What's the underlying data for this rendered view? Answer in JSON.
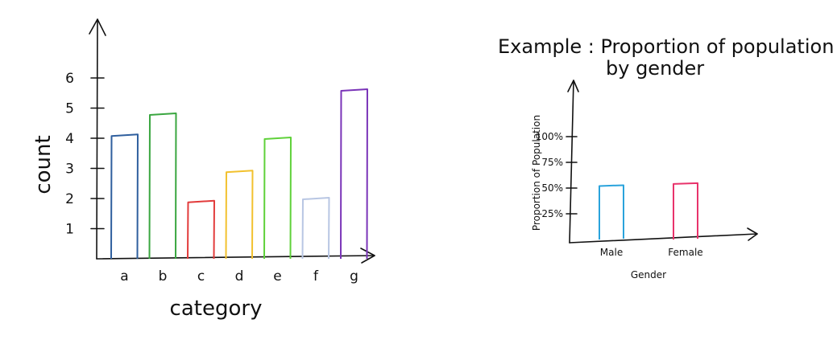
{
  "chart_data": [
    {
      "type": "bar",
      "categories": [
        "a",
        "b",
        "c",
        "d",
        "e",
        "f",
        "g"
      ],
      "values": [
        4.1,
        4.8,
        1.9,
        2.9,
        4.0,
        2.0,
        5.6
      ],
      "colors": [
        "#2f5f9e",
        "#3aa640",
        "#e23b3b",
        "#f2c12e",
        "#5fd13a",
        "#b8c6e3",
        "#7a34b8"
      ],
      "title": "",
      "xlabel": "category",
      "ylabel": "count",
      "yticks": [
        1,
        2,
        3,
        4,
        5,
        6
      ],
      "ylim": [
        0,
        6.5
      ],
      "grid": false
    },
    {
      "type": "bar",
      "categories": [
        "Male",
        "Female"
      ],
      "values": [
        52,
        54
      ],
      "colors": [
        "#2aa3dc",
        "#e8336b"
      ],
      "title": "Example : Proportion of population by gender",
      "title_lines": [
        "Example : Proportion of population",
        "by gender"
      ],
      "xlabel": "Gender",
      "ylabel": "Proportion of Population",
      "ytick_labels": [
        "25%",
        "50%",
        "75%",
        "100%"
      ],
      "yticks": [
        25,
        50,
        75,
        100
      ],
      "ylim": [
        0,
        140
      ],
      "grid": false
    }
  ]
}
